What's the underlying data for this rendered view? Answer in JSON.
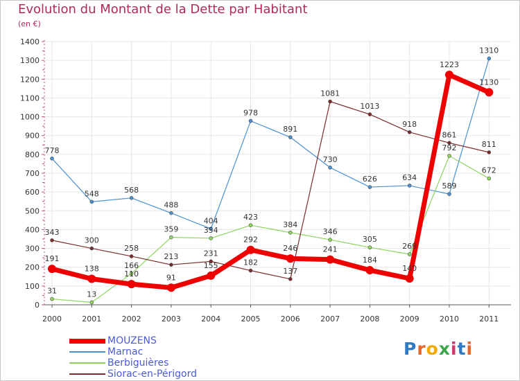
{
  "header": {
    "title": "Evolution du Montant de la Dette par Habitant",
    "subtitle": "(en €)"
  },
  "logo": {
    "letters": [
      "P",
      "r",
      "o",
      "x",
      "i",
      "t",
      "i"
    ],
    "colors": [
      "#2e7bc4",
      "#e8642a",
      "#f2a900",
      "#3aa84a",
      "#d6336c",
      "#2e7bc4",
      "#e8642a"
    ]
  },
  "chart_data": {
    "type": "line",
    "title": "Evolution du Montant de la Dette par Habitant",
    "subtitle": "(en €)",
    "xlabel": "",
    "ylabel": "",
    "x": [
      "2000",
      "2001",
      "2002",
      "2003",
      "2004",
      "2005",
      "2006",
      "2007",
      "2008",
      "2009",
      "2010",
      "2011"
    ],
    "ylim": [
      0,
      1400
    ],
    "yticks": [
      0,
      100,
      200,
      300,
      400,
      500,
      600,
      700,
      800,
      900,
      1000,
      1100,
      1200,
      1300,
      1400
    ],
    "grid": true,
    "legend_position": "bottom-left",
    "series": [
      {
        "name": "Marnac",
        "color": "#4a8fd0",
        "width": 1.2,
        "dot": 5,
        "values": [
          778,
          548,
          568,
          488,
          404,
          978,
          891,
          730,
          626,
          634,
          589,
          1310
        ]
      },
      {
        "name": "Berbiguières",
        "color": "#8ed45e",
        "width": 1.2,
        "dot": 5,
        "values": [
          31,
          13,
          166,
          359,
          354,
          423,
          384,
          346,
          305,
          269,
          792,
          672
        ]
      },
      {
        "name": "Siorac-en-Périgord",
        "color": "#7a2a2a",
        "width": 1.2,
        "dot": 5,
        "values": [
          343,
          300,
          258,
          213,
          231,
          182,
          137,
          1081,
          1013,
          918,
          861,
          811
        ]
      },
      {
        "name": "MOUZENS",
        "color": "#ee0000",
        "width": 7,
        "dot": 12,
        "values": [
          191,
          138,
          110,
          91,
          155,
          292,
          246,
          241,
          184,
          140,
          1223,
          1130
        ]
      }
    ],
    "legend_order": [
      "MOUZENS",
      "Marnac",
      "Berbiguières",
      "Siorac-en-Périgord"
    ]
  }
}
